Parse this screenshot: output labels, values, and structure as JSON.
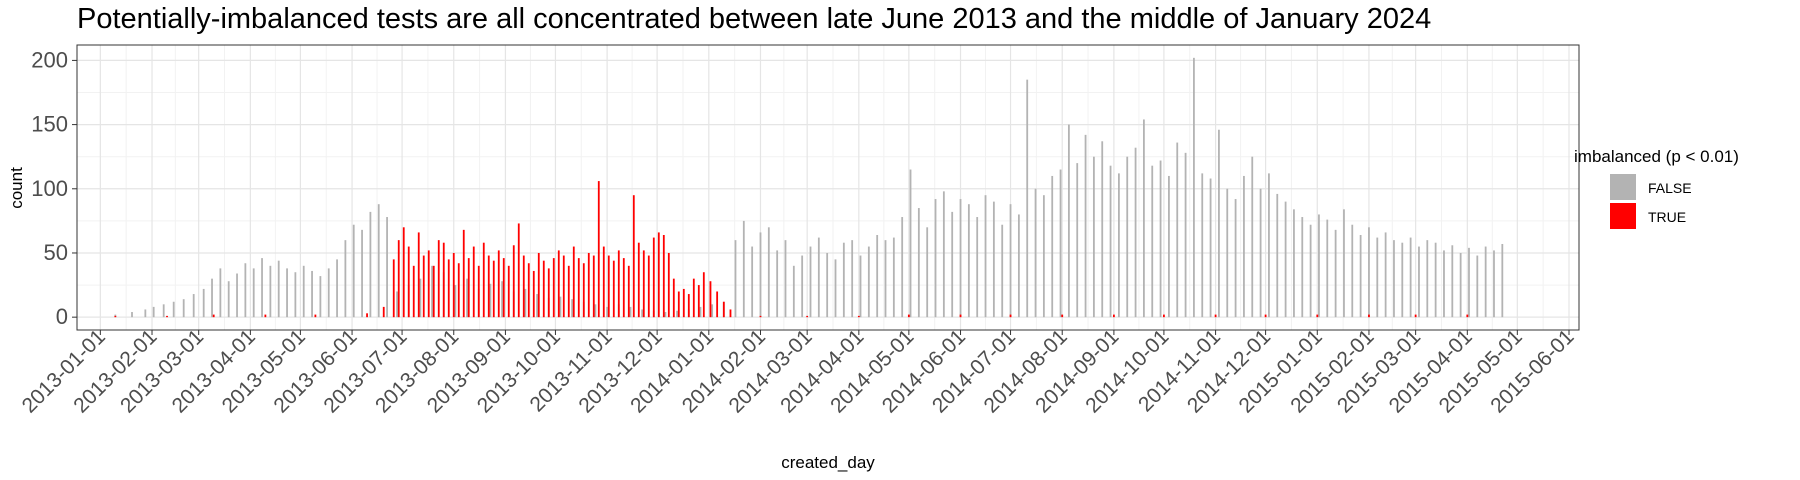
{
  "chart_data": {
    "type": "bar",
    "stacked": true,
    "title": "Potentially-imbalanced tests are all concentrated between late June 2013 and the middle of January 2024",
    "xlabel": "created_day",
    "ylabel": "count",
    "ylim": [
      -10,
      212
    ],
    "y_ticks": [
      "0",
      "50",
      "100",
      "150",
      "200"
    ],
    "x_range": [
      "2012-12-18",
      "2015-06-07"
    ],
    "x_ticks": [
      "2013-01-01",
      "2013-02-01",
      "2013-03-01",
      "2013-04-01",
      "2013-05-01",
      "2013-06-01",
      "2013-07-01",
      "2013-08-01",
      "2013-09-01",
      "2013-10-01",
      "2013-11-01",
      "2013-12-01",
      "2014-01-01",
      "2014-02-01",
      "2014-03-01",
      "2014-04-01",
      "2014-05-01",
      "2014-06-01",
      "2014-07-01",
      "2014-08-01",
      "2014-09-01",
      "2014-10-01",
      "2014-11-01",
      "2014-12-01",
      "2015-01-01",
      "2015-02-01",
      "2015-03-01",
      "2015-04-01",
      "2015-05-01",
      "2015-06-01"
    ],
    "grid": true,
    "legend_position": "right",
    "legend": {
      "title": "imbalanced (p < 0.01)",
      "entries": [
        {
          "label": "FALSE",
          "color": "#b3b3b3"
        },
        {
          "label": "TRUE",
          "color": "#ff0000"
        }
      ]
    },
    "series": [
      {
        "name": "FALSE",
        "color": "#b3b3b3",
        "points": [
          [
            "2013-01-10",
            2
          ],
          [
            "2013-01-20",
            4
          ],
          [
            "2013-01-28",
            6
          ],
          [
            "2013-02-02",
            8
          ],
          [
            "2013-02-08",
            10
          ],
          [
            "2013-02-14",
            12
          ],
          [
            "2013-02-20",
            14
          ],
          [
            "2013-02-26",
            18
          ],
          [
            "2013-03-04",
            22
          ],
          [
            "2013-03-09",
            30
          ],
          [
            "2013-03-14",
            38
          ],
          [
            "2013-03-19",
            28
          ],
          [
            "2013-03-24",
            34
          ],
          [
            "2013-03-29",
            42
          ],
          [
            "2013-04-03",
            38
          ],
          [
            "2013-04-08",
            46
          ],
          [
            "2013-04-13",
            40
          ],
          [
            "2013-04-18",
            44
          ],
          [
            "2013-04-23",
            38
          ],
          [
            "2013-04-28",
            35
          ],
          [
            "2013-05-03",
            40
          ],
          [
            "2013-05-08",
            36
          ],
          [
            "2013-05-13",
            32
          ],
          [
            "2013-05-18",
            38
          ],
          [
            "2013-05-23",
            45
          ],
          [
            "2013-05-28",
            60
          ],
          [
            "2013-06-02",
            72
          ],
          [
            "2013-06-07",
            68
          ],
          [
            "2013-06-12",
            82
          ],
          [
            "2013-06-17",
            88
          ],
          [
            "2013-06-22",
            78
          ],
          [
            "2013-06-28",
            20
          ],
          [
            "2013-07-05",
            25
          ],
          [
            "2013-07-12",
            30
          ],
          [
            "2013-07-19",
            40
          ],
          [
            "2013-07-26",
            35
          ],
          [
            "2013-08-02",
            25
          ],
          [
            "2013-08-09",
            30
          ],
          [
            "2013-08-16",
            22
          ],
          [
            "2013-08-23",
            26
          ],
          [
            "2013-08-30",
            28
          ],
          [
            "2013-09-06",
            20
          ],
          [
            "2013-09-13",
            22
          ],
          [
            "2013-09-20",
            18
          ],
          [
            "2013-09-27",
            15
          ],
          [
            "2013-10-04",
            16
          ],
          [
            "2013-10-11",
            14
          ],
          [
            "2013-10-18",
            12
          ],
          [
            "2013-10-25",
            10
          ],
          [
            "2013-11-01",
            8
          ],
          [
            "2013-11-08",
            10
          ],
          [
            "2013-11-15",
            8
          ],
          [
            "2013-11-22",
            6
          ],
          [
            "2013-11-29",
            5
          ],
          [
            "2013-12-06",
            4
          ],
          [
            "2013-12-13",
            5
          ],
          [
            "2013-12-20",
            6
          ],
          [
            "2013-12-27",
            8
          ],
          [
            "2014-01-03",
            10
          ],
          [
            "2014-01-10",
            12
          ],
          [
            "2014-01-17",
            60
          ],
          [
            "2014-01-22",
            75
          ],
          [
            "2014-01-27",
            55
          ],
          [
            "2014-02-01",
            66
          ],
          [
            "2014-02-06",
            70
          ],
          [
            "2014-02-11",
            52
          ],
          [
            "2014-02-16",
            60
          ],
          [
            "2014-02-21",
            40
          ],
          [
            "2014-02-26",
            48
          ],
          [
            "2014-03-03",
            55
          ],
          [
            "2014-03-08",
            62
          ],
          [
            "2014-03-13",
            50
          ],
          [
            "2014-03-18",
            45
          ],
          [
            "2014-03-23",
            58
          ],
          [
            "2014-03-28",
            60
          ],
          [
            "2014-04-02",
            48
          ],
          [
            "2014-04-07",
            55
          ],
          [
            "2014-04-12",
            64
          ],
          [
            "2014-04-17",
            60
          ],
          [
            "2014-04-22",
            62
          ],
          [
            "2014-04-27",
            78
          ],
          [
            "2014-05-02",
            115
          ],
          [
            "2014-05-07",
            85
          ],
          [
            "2014-05-12",
            70
          ],
          [
            "2014-05-17",
            92
          ],
          [
            "2014-05-22",
            98
          ],
          [
            "2014-05-27",
            82
          ],
          [
            "2014-06-01",
            92
          ],
          [
            "2014-06-06",
            88
          ],
          [
            "2014-06-11",
            78
          ],
          [
            "2014-06-16",
            95
          ],
          [
            "2014-06-21",
            90
          ],
          [
            "2014-06-26",
            72
          ],
          [
            "2014-07-01",
            88
          ],
          [
            "2014-07-06",
            80
          ],
          [
            "2014-07-11",
            185
          ],
          [
            "2014-07-16",
            100
          ],
          [
            "2014-07-21",
            95
          ],
          [
            "2014-07-26",
            110
          ],
          [
            "2014-07-31",
            115
          ],
          [
            "2014-08-05",
            150
          ],
          [
            "2014-08-10",
            120
          ],
          [
            "2014-08-15",
            142
          ],
          [
            "2014-08-20",
            125
          ],
          [
            "2014-08-25",
            137
          ],
          [
            "2014-08-30",
            118
          ],
          [
            "2014-09-04",
            112
          ],
          [
            "2014-09-09",
            125
          ],
          [
            "2014-09-14",
            132
          ],
          [
            "2014-09-19",
            154
          ],
          [
            "2014-09-24",
            118
          ],
          [
            "2014-09-29",
            122
          ],
          [
            "2014-10-04",
            110
          ],
          [
            "2014-10-09",
            136
          ],
          [
            "2014-10-14",
            128
          ],
          [
            "2014-10-19",
            202
          ],
          [
            "2014-10-24",
            112
          ],
          [
            "2014-10-29",
            108
          ],
          [
            "2014-11-03",
            146
          ],
          [
            "2014-11-08",
            100
          ],
          [
            "2014-11-13",
            92
          ],
          [
            "2014-11-18",
            110
          ],
          [
            "2014-11-23",
            125
          ],
          [
            "2014-11-28",
            100
          ],
          [
            "2014-12-03",
            112
          ],
          [
            "2014-12-08",
            96
          ],
          [
            "2014-12-13",
            90
          ],
          [
            "2014-12-18",
            84
          ],
          [
            "2014-12-23",
            78
          ],
          [
            "2014-12-28",
            72
          ],
          [
            "2015-01-02",
            80
          ],
          [
            "2015-01-07",
            76
          ],
          [
            "2015-01-12",
            68
          ],
          [
            "2015-01-17",
            84
          ],
          [
            "2015-01-22",
            72
          ],
          [
            "2015-01-27",
            64
          ],
          [
            "2015-02-01",
            70
          ],
          [
            "2015-02-06",
            62
          ],
          [
            "2015-02-11",
            66
          ],
          [
            "2015-02-16",
            60
          ],
          [
            "2015-02-21",
            58
          ],
          [
            "2015-02-26",
            62
          ],
          [
            "2015-03-03",
            55
          ],
          [
            "2015-03-08",
            60
          ],
          [
            "2015-03-13",
            58
          ],
          [
            "2015-03-18",
            52
          ],
          [
            "2015-03-23",
            56
          ],
          [
            "2015-03-28",
            50
          ],
          [
            "2015-04-02",
            54
          ],
          [
            "2015-04-07",
            48
          ],
          [
            "2015-04-12",
            55
          ],
          [
            "2015-04-17",
            52
          ],
          [
            "2015-04-22",
            57
          ]
        ]
      },
      {
        "name": "TRUE",
        "color": "#ff0000",
        "points": [
          [
            "2013-01-10",
            1
          ],
          [
            "2013-02-10",
            1
          ],
          [
            "2013-03-10",
            2
          ],
          [
            "2013-04-10",
            2
          ],
          [
            "2013-05-10",
            2
          ],
          [
            "2013-06-10",
            3
          ],
          [
            "2013-06-20",
            8
          ],
          [
            "2013-06-26",
            45
          ],
          [
            "2013-06-29",
            60
          ],
          [
            "2013-07-02",
            70
          ],
          [
            "2013-07-05",
            55
          ],
          [
            "2013-07-08",
            40
          ],
          [
            "2013-07-11",
            66
          ],
          [
            "2013-07-14",
            48
          ],
          [
            "2013-07-17",
            52
          ],
          [
            "2013-07-20",
            40
          ],
          [
            "2013-07-23",
            60
          ],
          [
            "2013-07-26",
            58
          ],
          [
            "2013-07-29",
            45
          ],
          [
            "2013-08-01",
            50
          ],
          [
            "2013-08-04",
            42
          ],
          [
            "2013-08-07",
            68
          ],
          [
            "2013-08-10",
            46
          ],
          [
            "2013-08-13",
            55
          ],
          [
            "2013-08-16",
            40
          ],
          [
            "2013-08-19",
            58
          ],
          [
            "2013-08-22",
            48
          ],
          [
            "2013-08-25",
            44
          ],
          [
            "2013-08-28",
            52
          ],
          [
            "2013-08-31",
            46
          ],
          [
            "2013-09-03",
            40
          ],
          [
            "2013-09-06",
            56
          ],
          [
            "2013-09-09",
            73
          ],
          [
            "2013-09-12",
            48
          ],
          [
            "2013-09-15",
            42
          ],
          [
            "2013-09-18",
            36
          ],
          [
            "2013-09-21",
            50
          ],
          [
            "2013-09-24",
            44
          ],
          [
            "2013-09-27",
            38
          ],
          [
            "2013-09-30",
            46
          ],
          [
            "2013-10-03",
            52
          ],
          [
            "2013-10-06",
            48
          ],
          [
            "2013-10-09",
            40
          ],
          [
            "2013-10-12",
            55
          ],
          [
            "2013-10-15",
            46
          ],
          [
            "2013-10-18",
            42
          ],
          [
            "2013-10-21",
            50
          ],
          [
            "2013-10-24",
            48
          ],
          [
            "2013-10-27",
            106
          ],
          [
            "2013-10-30",
            55
          ],
          [
            "2013-11-02",
            48
          ],
          [
            "2013-11-05",
            44
          ],
          [
            "2013-11-08",
            52
          ],
          [
            "2013-11-11",
            46
          ],
          [
            "2013-11-14",
            40
          ],
          [
            "2013-11-17",
            95
          ],
          [
            "2013-11-20",
            58
          ],
          [
            "2013-11-23",
            52
          ],
          [
            "2013-11-26",
            48
          ],
          [
            "2013-11-29",
            62
          ],
          [
            "2013-12-02",
            66
          ],
          [
            "2013-12-05",
            64
          ],
          [
            "2013-12-08",
            50
          ],
          [
            "2013-12-11",
            30
          ],
          [
            "2013-12-14",
            20
          ],
          [
            "2013-12-17",
            22
          ],
          [
            "2013-12-20",
            18
          ],
          [
            "2013-12-23",
            30
          ],
          [
            "2013-12-26",
            25
          ],
          [
            "2013-12-29",
            35
          ],
          [
            "2014-01-02",
            28
          ],
          [
            "2014-01-06",
            20
          ],
          [
            "2014-01-10",
            12
          ],
          [
            "2014-01-14",
            6
          ],
          [
            "2014-02-01",
            1
          ],
          [
            "2014-03-01",
            1
          ],
          [
            "2014-04-01",
            1
          ],
          [
            "2014-05-01",
            2
          ],
          [
            "2014-06-01",
            2
          ],
          [
            "2014-07-01",
            2
          ],
          [
            "2014-08-01",
            2
          ],
          [
            "2014-09-01",
            2
          ],
          [
            "2014-10-01",
            2
          ],
          [
            "2014-11-01",
            2
          ],
          [
            "2014-12-01",
            2
          ],
          [
            "2015-01-01",
            2
          ],
          [
            "2015-02-01",
            2
          ],
          [
            "2015-03-01",
            2
          ],
          [
            "2015-04-01",
            2
          ]
        ]
      }
    ]
  }
}
